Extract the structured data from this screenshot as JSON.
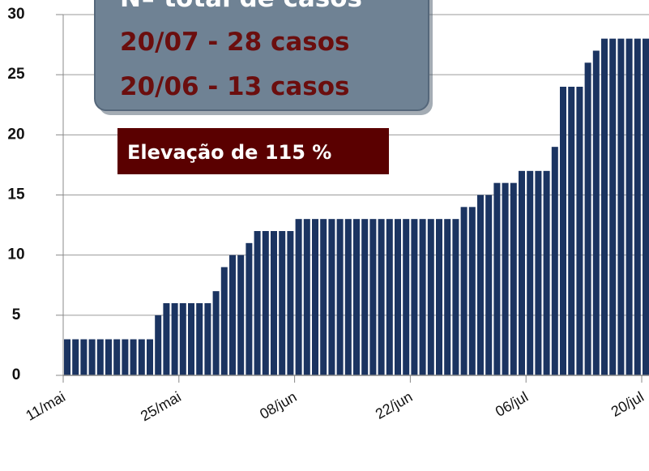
{
  "chart_data": {
    "type": "bar",
    "annotations": [
      "Nº total de casos",
      "20/07 - 28 casos",
      "20/06 - 13 casos",
      "Elevação de 115 %"
    ],
    "categories": [
      "11/mai",
      null,
      null,
      null,
      null,
      null,
      null,
      null,
      null,
      null,
      null,
      null,
      null,
      null,
      "25/mai",
      null,
      null,
      null,
      null,
      null,
      null,
      null,
      null,
      null,
      null,
      null,
      null,
      null,
      "08/jun",
      null,
      null,
      null,
      null,
      null,
      null,
      null,
      null,
      null,
      null,
      null,
      null,
      null,
      "22/jun",
      null,
      null,
      null,
      null,
      null,
      null,
      null,
      null,
      null,
      null,
      null,
      null,
      null,
      "06/jul",
      null,
      null,
      null,
      null,
      null,
      null,
      null,
      null,
      null,
      null,
      null,
      null,
      null,
      "20/jul",
      null
    ],
    "values": [
      3,
      3,
      3,
      3,
      3,
      3,
      3,
      3,
      3,
      3,
      3,
      5,
      6,
      6,
      6,
      6,
      6,
      6,
      7,
      9,
      10,
      10,
      11,
      12,
      12,
      12,
      12,
      12,
      13,
      13,
      13,
      13,
      13,
      13,
      13,
      13,
      13,
      13,
      13,
      13,
      13,
      13,
      13,
      13,
      13,
      13,
      13,
      13,
      14,
      14,
      15,
      15,
      16,
      16,
      16,
      17,
      17,
      17,
      17,
      19,
      24,
      24,
      24,
      26,
      27,
      28,
      28,
      28,
      28,
      28,
      28,
      28
    ],
    "color": "#1b3461",
    "ylim": [
      0,
      30
    ],
    "yticks": [
      0,
      5,
      10,
      15,
      20,
      25,
      30
    ],
    "grid": true
  }
}
